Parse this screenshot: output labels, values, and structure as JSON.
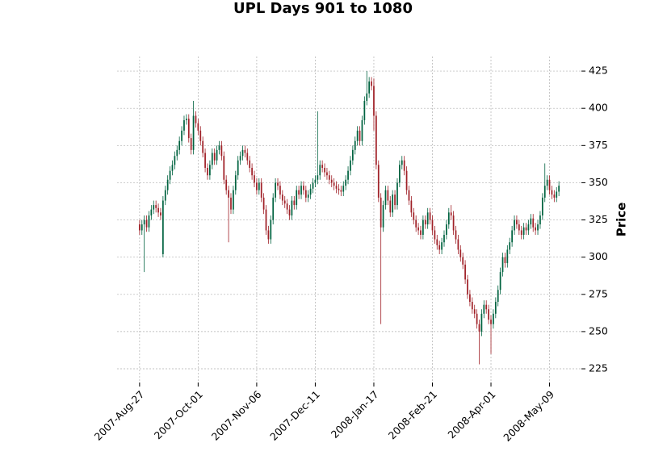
{
  "chart_data": {
    "type": "candlestick",
    "title": "UPL Days 901 to 1080",
    "ylabel": "Price",
    "up_color": "#006340",
    "down_color": "#a02128",
    "grid": true,
    "xlim": [
      -9.6,
      188.6
    ],
    "ylim": [
      215.8,
      434.8
    ],
    "yticks": [
      225,
      250,
      275,
      300,
      325,
      350,
      375,
      400,
      425
    ],
    "xticks": [
      {
        "value": 0,
        "label": "2007-Aug-27"
      },
      {
        "value": 25,
        "label": "2007-Oct-01"
      },
      {
        "value": 50,
        "label": "2007-Nov-06"
      },
      {
        "value": 75,
        "label": "2007-Dec-11"
      },
      {
        "value": 100,
        "label": "2008-Jan-17"
      },
      {
        "value": 125,
        "label": "2008-Feb-21"
      },
      {
        "value": 150,
        "label": "2008-Apr-01"
      },
      {
        "value": 175,
        "label": "2008-May-09"
      }
    ],
    "open": [
      322,
      318,
      322,
      325,
      320,
      328,
      332,
      335,
      333,
      330,
      302,
      338,
      345,
      352,
      358,
      362,
      368,
      372,
      378,
      385,
      392,
      393,
      380,
      372,
      395,
      390,
      385,
      378,
      370,
      360,
      355,
      362,
      370,
      365,
      372,
      375,
      368,
      352,
      345,
      340,
      332,
      345,
      355,
      365,
      368,
      372,
      370,
      365,
      360,
      355,
      350,
      345,
      350,
      340,
      332,
      318,
      312,
      325,
      340,
      350,
      348,
      342,
      338,
      336,
      332,
      328,
      338,
      335,
      345,
      342,
      348,
      345,
      340,
      342,
      346,
      350,
      352,
      355,
      362,
      360,
      357,
      355,
      352,
      350,
      348,
      346,
      345,
      344,
      348,
      352,
      358,
      365,
      372,
      378,
      385,
      378,
      392,
      405,
      410,
      418,
      415,
      395,
      362,
      340,
      320,
      335,
      345,
      338,
      330,
      342,
      335,
      350,
      362,
      365,
      358,
      345,
      338,
      330,
      325,
      320,
      318,
      315,
      325,
      322,
      330,
      325,
      318,
      312,
      308,
      305,
      310,
      315,
      322,
      330,
      328,
      318,
      312,
      305,
      300,
      295,
      285,
      275,
      270,
      265,
      262,
      255,
      250,
      262,
      268,
      265,
      258,
      255,
      262,
      270,
      278,
      290,
      300,
      296,
      305,
      310,
      318,
      325,
      322,
      318,
      315,
      320,
      318,
      322,
      326,
      320,
      318,
      322,
      328,
      340,
      348,
      352,
      345,
      342,
      340,
      344
    ],
    "high": [
      325,
      325,
      328,
      328,
      331,
      335,
      338,
      338,
      336,
      333,
      341,
      348,
      355,
      361,
      365,
      371,
      375,
      381,
      388,
      395,
      396,
      396,
      383,
      405,
      398,
      393,
      388,
      381,
      373,
      363,
      365,
      373,
      373,
      375,
      378,
      378,
      371,
      355,
      348,
      343,
      348,
      358,
      368,
      371,
      375,
      375,
      373,
      368,
      363,
      358,
      353,
      353,
      353,
      343,
      335,
      321,
      328,
      343,
      353,
      353,
      351,
      345,
      341,
      339,
      335,
      341,
      341,
      348,
      348,
      351,
      351,
      348,
      345,
      349,
      353,
      355,
      398,
      365,
      365,
      363,
      360,
      358,
      355,
      353,
      351,
      349,
      348,
      351,
      355,
      361,
      368,
      375,
      381,
      388,
      388,
      395,
      408,
      425,
      421,
      421,
      420,
      398,
      365,
      343,
      338,
      348,
      348,
      341,
      345,
      345,
      353,
      365,
      368,
      368,
      361,
      348,
      341,
      333,
      328,
      323,
      321,
      328,
      328,
      333,
      333,
      328,
      321,
      315,
      311,
      313,
      318,
      325,
      333,
      335,
      331,
      321,
      315,
      308,
      303,
      298,
      288,
      278,
      273,
      268,
      265,
      258,
      265,
      271,
      271,
      268,
      261,
      265,
      273,
      281,
      293,
      303,
      303,
      308,
      313,
      321,
      328,
      328,
      325,
      321,
      323,
      323,
      325,
      329,
      329,
      323,
      325,
      331,
      343,
      363,
      355,
      355,
      348,
      345,
      347,
      351
    ],
    "low": [
      315,
      315,
      290,
      317,
      317,
      325,
      329,
      330,
      327,
      325,
      300,
      335,
      342,
      349,
      355,
      359,
      365,
      369,
      375,
      382,
      389,
      377,
      369,
      369,
      387,
      382,
      375,
      367,
      357,
      352,
      352,
      359,
      362,
      362,
      369,
      365,
      349,
      342,
      310,
      329,
      329,
      342,
      352,
      362,
      365,
      367,
      362,
      357,
      352,
      347,
      342,
      342,
      337,
      329,
      315,
      309,
      309,
      322,
      337,
      345,
      339,
      335,
      333,
      329,
      325,
      325,
      332,
      332,
      339,
      339,
      342,
      337,
      337,
      339,
      343,
      347,
      349,
      352,
      357,
      354,
      352,
      349,
      347,
      345,
      343,
      342,
      341,
      341,
      345,
      349,
      355,
      362,
      369,
      375,
      375,
      375,
      389,
      402,
      407,
      412,
      385,
      359,
      337,
      255,
      317,
      332,
      335,
      327,
      327,
      332,
      332,
      347,
      359,
      355,
      342,
      335,
      327,
      322,
      317,
      315,
      312,
      312,
      319,
      319,
      322,
      315,
      309,
      305,
      302,
      302,
      307,
      312,
      319,
      325,
      315,
      309,
      302,
      297,
      292,
      282,
      272,
      267,
      262,
      259,
      252,
      228,
      247,
      259,
      262,
      255,
      235,
      252,
      259,
      267,
      275,
      287,
      293,
      293,
      302,
      307,
      315,
      319,
      315,
      312,
      312,
      315,
      315,
      319,
      317,
      315,
      315,
      319,
      325,
      337,
      345,
      342,
      339,
      337,
      337,
      341
    ],
    "close": [
      318,
      322,
      325,
      320,
      328,
      332,
      335,
      333,
      330,
      328,
      338,
      345,
      352,
      358,
      362,
      368,
      372,
      378,
      385,
      392,
      393,
      380,
      372,
      395,
      390,
      385,
      378,
      370,
      360,
      355,
      362,
      370,
      365,
      372,
      375,
      368,
      352,
      345,
      340,
      332,
      345,
      355,
      365,
      368,
      372,
      370,
      365,
      360,
      355,
      350,
      345,
      350,
      340,
      332,
      318,
      312,
      325,
      340,
      350,
      348,
      342,
      338,
      336,
      332,
      328,
      338,
      335,
      345,
      342,
      348,
      345,
      340,
      342,
      346,
      350,
      352,
      355,
      362,
      360,
      357,
      355,
      352,
      350,
      348,
      346,
      345,
      344,
      348,
      352,
      358,
      365,
      372,
      378,
      385,
      378,
      392,
      405,
      410,
      418,
      415,
      395,
      362,
      340,
      320,
      335,
      345,
      338,
      330,
      342,
      335,
      350,
      362,
      365,
      358,
      345,
      338,
      330,
      325,
      320,
      318,
      315,
      325,
      322,
      330,
      325,
      318,
      312,
      308,
      305,
      310,
      315,
      322,
      330,
      328,
      318,
      312,
      305,
      300,
      295,
      285,
      275,
      270,
      265,
      262,
      255,
      250,
      262,
      268,
      265,
      258,
      255,
      262,
      270,
      278,
      290,
      300,
      296,
      305,
      310,
      318,
      325,
      322,
      318,
      315,
      320,
      318,
      322,
      326,
      320,
      318,
      322,
      328,
      340,
      348,
      352,
      345,
      342,
      340,
      344,
      348
    ]
  }
}
